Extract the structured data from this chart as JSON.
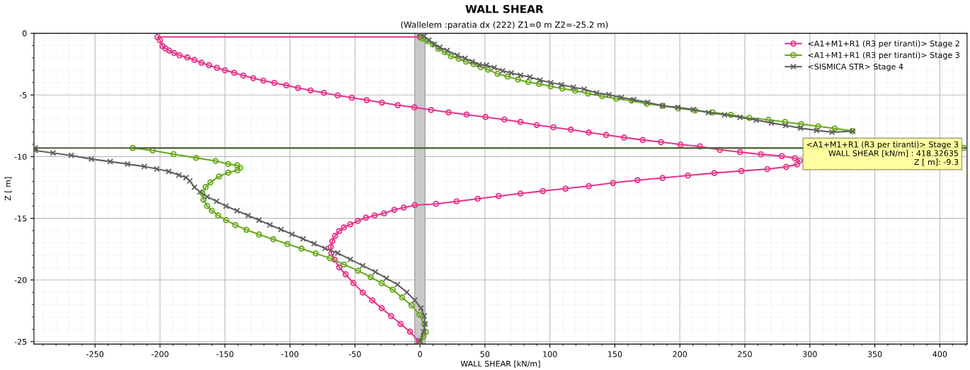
{
  "chart_data": {
    "type": "line",
    "title": "WALL SHEAR",
    "subtitle": "(Wallelem :paratia dx (222) Z1=0 m Z2=-25.2 m)",
    "xlabel": "WALL SHEAR [kN/m]",
    "ylabel": "Z [ m]",
    "xlim": [
      -297,
      421
    ],
    "xticks": [
      -250,
      -200,
      -150,
      -100,
      -50,
      0,
      50,
      100,
      150,
      200,
      250,
      300,
      350,
      400
    ],
    "ylim": [
      -25.2,
      0
    ],
    "yticks": [
      -25,
      -20,
      -15,
      -10,
      -5,
      0
    ],
    "grid": true,
    "legend": "top right",
    "line_style": "solid",
    "series": [
      {
        "name": "<A1+M1+R1 (R3 per tiranti)> Stage 2",
        "color": "#e8348c",
        "marker": "circle",
        "x": [
          0,
          -202,
          -200,
          -198.1,
          -195.9,
          -193,
          -189.2,
          -185,
          -179,
          -173.5,
          -168.1,
          -162.3,
          -156.2,
          -150,
          -143,
          -135.9,
          -128.2,
          -120.4,
          -112,
          -102.8,
          -93.8,
          -84.1,
          -73.9,
          -63.3,
          -52.4,
          -41,
          -29.2,
          -17.1,
          -4.3,
          8.6,
          22.1,
          35.9,
          50.4,
          65,
          77.4,
          89.8,
          102.7,
          116.1,
          129.9,
          143.3,
          157.1,
          171.4,
          185.5,
          200.5,
          215.3,
          230.8,
          246.3,
          262.3,
          278.5,
          288.5,
          292.2,
          290.2,
          281.8,
          267.3,
          247.3,
          226.5,
          206.2,
          186.7,
          167.4,
          148.5,
          129.9,
          112,
          94.6,
          77.4,
          60.5,
          44.4,
          28.2,
          12.4,
          -4,
          -12.5,
          -19.7,
          -27.5,
          -34.8,
          -41.5,
          -47.8,
          -53.6,
          -58.5,
          -62.1,
          -65.3,
          -67.4,
          -68.6,
          -68.1,
          -65.7,
          -62.1,
          -57.2,
          -51.2,
          -44,
          -36.7,
          -29.4,
          -22.2,
          -14.9,
          -7.6,
          -0.9
        ],
        "values": [
          -0.3,
          -0.3,
          -0.58,
          -1.04,
          -1.22,
          -1.39,
          -1.6,
          -1.78,
          -1.96,
          -2.16,
          -2.39,
          -2.59,
          -2.8,
          -3.0,
          -3.2,
          -3.43,
          -3.64,
          -3.84,
          -4.02,
          -4.22,
          -4.43,
          -4.63,
          -4.83,
          -5.04,
          -5.22,
          -5.42,
          -5.62,
          -5.83,
          -6.0,
          -6.21,
          -6.41,
          -6.59,
          -6.79,
          -6.99,
          -7.19,
          -7.44,
          -7.62,
          -7.81,
          -8.04,
          -8.24,
          -8.45,
          -8.65,
          -8.82,
          -9.02,
          -9.17,
          -9.45,
          -9.63,
          -9.81,
          -9.95,
          -10.13,
          -10.33,
          -10.63,
          -10.83,
          -11.01,
          -11.16,
          -11.33,
          -11.53,
          -11.73,
          -11.91,
          -12.13,
          -12.39,
          -12.59,
          -12.79,
          -12.99,
          -13.2,
          -13.42,
          -13.63,
          -13.83,
          -13.93,
          -14.13,
          -14.31,
          -14.6,
          -14.77,
          -14.95,
          -15.21,
          -15.49,
          -15.74,
          -16.04,
          -16.43,
          -16.86,
          -17.32,
          -17.83,
          -18.34,
          -18.98,
          -19.54,
          -20.25,
          -21.02,
          -21.65,
          -22.29,
          -22.93,
          -23.56,
          -24.2,
          -24.97
        ]
      },
      {
        "name": "<A1+M1+R1 (R3 per tiranti)> Stage 3",
        "color": "#6aaa1e",
        "marker": "circle",
        "x": [
          0,
          2,
          5.7,
          9.8,
          14.1,
          19,
          23.8,
          29.8,
          35.4,
          41.3,
          46.8,
          52.4,
          59.7,
          67.4,
          75.5,
          83.4,
          91.7,
          100.6,
          109.6,
          119.4,
          129.4,
          140.2,
          151.1,
          162.8,
          174.5,
          186.7,
          198.8,
          211.7,
          225.3,
          239.2,
          253.5,
          268.2,
          280.9,
          293.3,
          306.4,
          319.1,
          332.7,
          null,
          418.33,
          -221,
          -205.6,
          -189.6,
          -172.2,
          -157.2,
          -147.5,
          -140.7,
          -138.3,
          -140.4,
          -147.5,
          -154.6,
          -161.3,
          -164.9,
          -167.4,
          -166.6,
          -163.7,
          -160.1,
          -155.3,
          -149.2,
          -142,
          -133.5,
          -123.8,
          -112.9,
          -102,
          -91.1,
          -80.2,
          -69.3,
          -58.5,
          -47.6,
          -37.9,
          -29.4,
          -21,
          -13.7,
          -6.5,
          -0.4,
          3.3,
          4.5,
          2.7,
          0
        ],
        "values": [
          0,
          -0.44,
          -0.64,
          -0.9,
          -1.27,
          -1.52,
          -1.86,
          -2.05,
          -2.3,
          -2.5,
          -2.74,
          -2.94,
          -3.29,
          -3.5,
          -3.75,
          -3.95,
          -4.1,
          -4.3,
          -4.48,
          -4.65,
          -4.88,
          -5.1,
          -5.3,
          -5.46,
          -5.71,
          -5.88,
          -6.08,
          -6.26,
          -6.41,
          -6.61,
          -6.86,
          -7.01,
          -7.19,
          -7.36,
          -7.54,
          -7.72,
          -7.92,
          null,
          -9.3,
          -9.3,
          -9.5,
          -9.8,
          -10.1,
          -10.35,
          -10.6,
          -10.7,
          -10.9,
          -11.1,
          -11.3,
          -11.6,
          -12.09,
          -12.47,
          -12.98,
          -13.49,
          -14.0,
          -14.38,
          -14.77,
          -15.15,
          -15.55,
          -15.93,
          -16.31,
          -16.7,
          -17.08,
          -17.46,
          -17.85,
          -18.23,
          -18.74,
          -19.25,
          -19.76,
          -20.27,
          -20.78,
          -21.42,
          -22.06,
          -22.82,
          -23.59,
          -24.22,
          -24.6,
          -24.97
        ]
      },
      {
        "name": "<SISMICA STR> Stage 4",
        "color": "#606060",
        "marker": "cross",
        "x": [
          0,
          3.3,
          6.9,
          11.2,
          15.3,
          20.9,
          28.7,
          34.7,
          40.3,
          45.6,
          51.2,
          57.1,
          63.6,
          70.3,
          77.4,
          84.6,
          92.4,
          100.6,
          108.9,
          118,
          126.3,
          135.9,
          145.4,
          154.9,
          164.5,
          175.2,
          186.7,
          198.4,
          210.3,
          222,
          234.4,
          246.3,
          258.7,
          270.4,
          281.4,
          292.8,
          305.2,
          317.1,
          333,
          null,
          -296,
          -296,
          -282.3,
          -268.3,
          -252.8,
          -238.3,
          -225,
          -212.1,
          -202.5,
          -193.3,
          -185.5,
          -180,
          -177.1,
          -173.5,
          -169.3,
          -163.7,
          -156.5,
          -149.2,
          -140.7,
          -132.2,
          -123.8,
          -115.4,
          -106.9,
          -98.4,
          -89.9,
          -81.5,
          -73,
          -63.3,
          -53.6,
          -44,
          -34.3,
          -25.8,
          -17.3,
          -10.1,
          -4,
          0.8,
          3.3,
          4,
          2.7,
          0
        ],
        "values": [
          0,
          -0.25,
          -0.55,
          -0.88,
          -1.14,
          -1.39,
          -1.78,
          -2.03,
          -2.29,
          -2.54,
          -2.59,
          -2.79,
          -3.04,
          -3.22,
          -3.4,
          -3.55,
          -3.8,
          -4.0,
          -4.17,
          -4.38,
          -4.53,
          -4.83,
          -4.98,
          -5.2,
          -5.38,
          -5.6,
          -5.88,
          -6.01,
          -6.18,
          -6.43,
          -6.61,
          -6.81,
          -7.04,
          -7.26,
          -7.47,
          -7.69,
          -7.87,
          -8.02,
          -7.94,
          null,
          -9.29,
          -9.5,
          -9.7,
          -9.9,
          -10.2,
          -10.4,
          -10.6,
          -10.8,
          -11.0,
          -11.2,
          -11.5,
          -11.7,
          -11.97,
          -12.48,
          -12.86,
          -13.25,
          -13.63,
          -14.01,
          -14.39,
          -14.77,
          -15.15,
          -15.53,
          -15.91,
          -16.29,
          -16.67,
          -17.05,
          -17.44,
          -17.82,
          -18.33,
          -18.84,
          -19.35,
          -19.86,
          -20.37,
          -21.0,
          -21.64,
          -22.28,
          -22.92,
          -23.56,
          -24.2,
          -24.97
        ]
      }
    ],
    "bands": [
      {
        "axis": "x",
        "from": -4,
        "to": 4,
        "color": "#c8c8c8"
      }
    ],
    "ref_lines": [
      {
        "axis": "y",
        "value": -9.3,
        "color": "#4b5a3c",
        "line_style": "solid"
      }
    ],
    "annotations": [
      {
        "text": "<A1+M1+R1 (R3 per tiranti)> Stage 3\nWALL SHEAR [kN/m] : 418.32635\nZ [ m]: -9.3",
        "x": 418.33,
        "y": -9.3
      }
    ]
  }
}
